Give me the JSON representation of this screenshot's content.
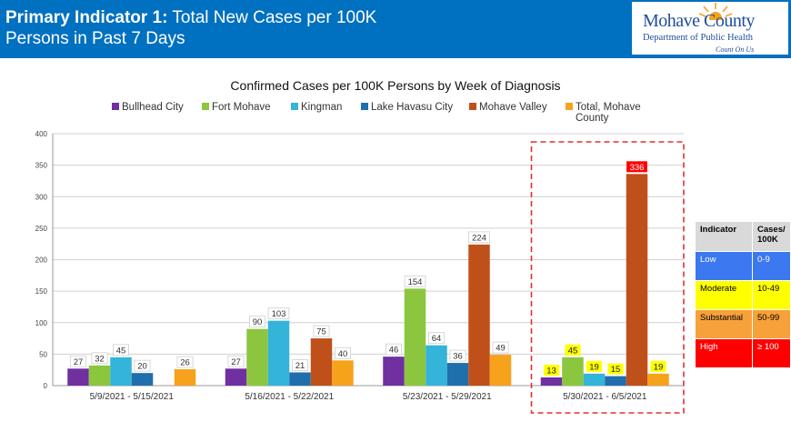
{
  "header": {
    "title_bold": "Primary Indicator 1:",
    "title_rest": "Total New Cases per 100K",
    "title_line2": "Persons in Past 7 Days"
  },
  "logo": {
    "name": "Mohave County",
    "dept": "Department of Public Health",
    "tagline": "Count On Us"
  },
  "chart_data": {
    "type": "bar",
    "title": "Confirmed Cases per 100K Persons by Week of Diagnosis",
    "categories": [
      "5/9/2021 - 5/15/2021",
      "5/16/2021 - 5/22/2021",
      "5/23/2021 - 5/29/2021",
      "5/30/2021 - 6/5/2021"
    ],
    "series": [
      {
        "name": "Bullhead City",
        "color": "#7030a0",
        "values": [
          27,
          27,
          46,
          13
        ]
      },
      {
        "name": "Fort Mohave",
        "color": "#8cc63f",
        "values": [
          32,
          90,
          154,
          45
        ]
      },
      {
        "name": "Kingman",
        "color": "#33b4d8",
        "values": [
          45,
          103,
          64,
          19
        ]
      },
      {
        "name": "Lake Havasu City",
        "color": "#1f6fad",
        "values": [
          20,
          21,
          36,
          15
        ]
      },
      {
        "name": "Mohave Valley",
        "color": "#c0501a",
        "values": [
          null,
          75,
          224,
          336
        ]
      },
      {
        "name": "Total, Mohave County",
        "color": "#f7a21b",
        "values": [
          26,
          40,
          49,
          19
        ]
      }
    ],
    "yticks": [
      "0",
      "50",
      "100",
      "150",
      "200",
      "250",
      "300",
      "350",
      "400"
    ],
    "ylim": [
      0,
      400
    ],
    "grid": true,
    "legend_position": "top",
    "highlight_category": 3,
    "highlight_label_colors": {
      "moderate": "#ffff00",
      "high": "#ff0000"
    }
  },
  "indicator_table": {
    "headers": [
      "Indicator",
      "Cases/ 100K"
    ],
    "rows": [
      {
        "indicator": "Low",
        "range": "0-9",
        "bg": "#3c78f0",
        "fg": "#ffffff"
      },
      {
        "indicator": "Moderate",
        "range": "10-49",
        "bg": "#ffff00",
        "fg": "#000000"
      },
      {
        "indicator": "Substantial",
        "range": "50-99",
        "bg": "#f7a13a",
        "fg": "#000000"
      },
      {
        "indicator": "High",
        "range": "≥ 100",
        "bg": "#ff0000",
        "fg": "#ffffff"
      }
    ]
  }
}
